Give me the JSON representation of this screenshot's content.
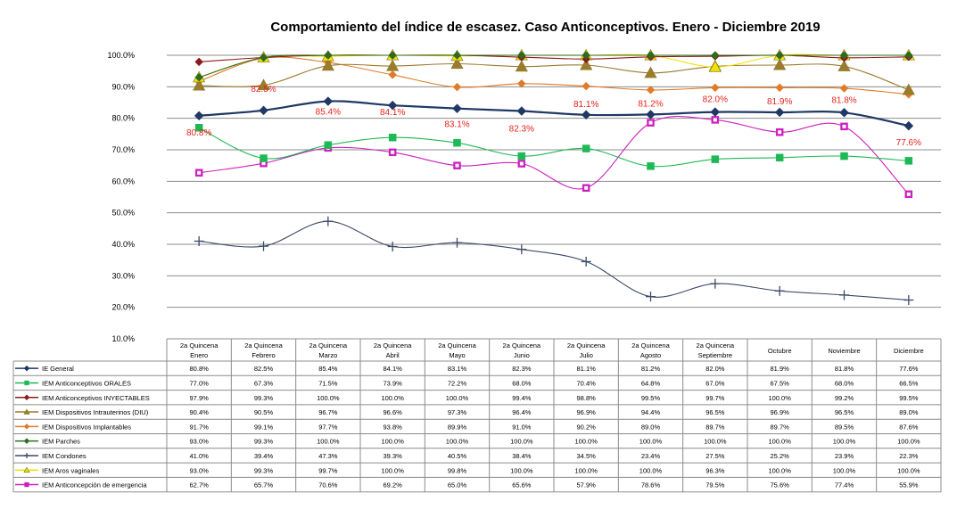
{
  "chart_data": {
    "type": "line",
    "title": "Comportamiento del índice de escasez. Caso Anticonceptivos. Enero - Diciembre 2019",
    "xlabel": "",
    "ylabel": "",
    "ylim": [
      10,
      100
    ],
    "yticks": [
      "10.0%",
      "20.0%",
      "30.0%",
      "40.0%",
      "50.0%",
      "60.0%",
      "70.0%",
      "80.0%",
      "90.0%",
      "100.0%"
    ],
    "grid": true,
    "legend": "data-table-bottom",
    "categories": [
      [
        "2a Quincena",
        "Enero"
      ],
      [
        "2a Quincena",
        "Febrero"
      ],
      [
        "2a Quincena",
        "Marzo"
      ],
      [
        "2a Quincena",
        "Abril"
      ],
      [
        "2a Quincena",
        "Mayo"
      ],
      [
        "2a Quincena",
        "Junio"
      ],
      [
        "2a Quincena",
        "Julio"
      ],
      [
        "2a Quincena",
        "Agosto"
      ],
      [
        "2a Quincena",
        "Septiembre"
      ],
      [
        "Octubre"
      ],
      [
        "Noviembre"
      ],
      [
        "Diciembre"
      ]
    ],
    "series": [
      {
        "name": "IE General",
        "color": "#1f3864",
        "marker": "diamond",
        "labels": true,
        "values": [
          80.8,
          82.5,
          85.4,
          84.1,
          83.1,
          82.3,
          81.1,
          81.2,
          82.0,
          81.9,
          81.8,
          77.6
        ],
        "display": [
          "80.8%",
          "82.5%",
          "85.4%",
          "84.1%",
          "83.1%",
          "82.3%",
          "81.1%",
          "81.2%",
          "82.0%",
          "81.9%",
          "81.8%",
          "77.6%"
        ]
      },
      {
        "name": "IEM Anticonceptivos ORALES",
        "color": "#1db954",
        "marker": "square",
        "values": [
          77.0,
          67.3,
          71.5,
          73.9,
          72.2,
          68.0,
          70.4,
          64.8,
          67.0,
          67.5,
          68.0,
          66.5
        ],
        "display": [
          "77.0%",
          "67.3%",
          "71.5%",
          "73.9%",
          "72.2%",
          "68.0%",
          "70.4%",
          "64.8%",
          "67.0%",
          "67.5%",
          "68.0%",
          "66.5%"
        ]
      },
      {
        "name": "IEM Anticonceptivos INYECTABLES",
        "color": "#8b1a1a",
        "marker": "diamond",
        "values": [
          97.9,
          99.3,
          100.0,
          100.0,
          100.0,
          99.4,
          98.8,
          99.5,
          99.7,
          100.0,
          99.2,
          99.5
        ],
        "display": [
          "97.9%",
          "99.3%",
          "100.0%",
          "100.0%",
          "100.0%",
          "99.4%",
          "98.8%",
          "99.5%",
          "99.7%",
          "100.0%",
          "99.2%",
          "99.5%"
        ]
      },
      {
        "name": "IEM Dispositivos Intrauterinos (DIU)",
        "color": "#9c7a2e",
        "marker": "triangle",
        "values": [
          90.4,
          90.5,
          96.7,
          96.6,
          97.3,
          96.4,
          96.9,
          94.4,
          96.5,
          96.9,
          96.5,
          89.0
        ],
        "display": [
          "90.4%",
          "90.5%",
          "96.7%",
          "96.6%",
          "97.3%",
          "96.4%",
          "96.9%",
          "94.4%",
          "96.5%",
          "96.9%",
          "96.5%",
          "89.0%"
        ]
      },
      {
        "name": "IEM Dispositivos Implantables",
        "color": "#e07b2a",
        "marker": "diamond",
        "values": [
          91.7,
          99.1,
          97.7,
          93.8,
          89.9,
          91.0,
          90.2,
          89.0,
          89.7,
          89.7,
          89.5,
          87.6
        ],
        "display": [
          "91.7%",
          "99.1%",
          "97.7%",
          "93.8%",
          "89.9%",
          "91.0%",
          "90.2%",
          "89.0%",
          "89.7%",
          "89.7%",
          "89.5%",
          "87.6%"
        ]
      },
      {
        "name": "IEM Parches",
        "color": "#2e6b1f",
        "marker": "diamond",
        "values": [
          93.0,
          99.3,
          100.0,
          100.0,
          100.0,
          100.0,
          100.0,
          100.0,
          100.0,
          100.0,
          100.0,
          100.0
        ],
        "display": [
          "93.0%",
          "99.3%",
          "100.0%",
          "100.0%",
          "100.0%",
          "100.0%",
          "100.0%",
          "100.0%",
          "100.0%",
          "100.0%",
          "100.0%",
          "100.0%"
        ]
      },
      {
        "name": "IEM Condones",
        "color": "#3b4a66",
        "marker": "plus",
        "values": [
          41.0,
          39.4,
          47.3,
          39.3,
          40.5,
          38.4,
          34.5,
          23.4,
          27.5,
          25.2,
          23.9,
          22.3
        ],
        "display": [
          "41.0%",
          "39.4%",
          "47.3%",
          "39.3%",
          "40.5%",
          "38.4%",
          "34.5%",
          "23.4%",
          "27.5%",
          "25.2%",
          "23.9%",
          "22.3%"
        ]
      },
      {
        "name": "IEM Aros vaginales",
        "color": "#f2e200",
        "marker": "triangle",
        "values": [
          93.0,
          99.3,
          99.7,
          100.0,
          99.8,
          100.0,
          100.0,
          100.0,
          96.3,
          100.0,
          100.0,
          100.0
        ],
        "display": [
          "93.0%",
          "99.3%",
          "99.7%",
          "100.0%",
          "99.8%",
          "100.0%",
          "100.0%",
          "100.0%",
          "96.3%",
          "100.0%",
          "100.0%",
          "100.0%"
        ]
      },
      {
        "name": "IEM Anticoncepción de emergencia",
        "color": "#cc1fbf",
        "marker": "square",
        "values": [
          62.7,
          65.7,
          70.6,
          69.2,
          65.0,
          65.6,
          57.9,
          78.6,
          79.5,
          75.6,
          77.4,
          55.9
        ],
        "display": [
          "62.7%",
          "65.7%",
          "70.6%",
          "69.2%",
          "65.0%",
          "65.6%",
          "57.9%",
          "78.6%",
          "79.5%",
          "75.6%",
          "77.4%",
          "55.9%"
        ]
      }
    ],
    "draw_order": [
      6,
      8,
      1,
      0,
      4,
      3,
      7,
      2,
      5
    ]
  }
}
